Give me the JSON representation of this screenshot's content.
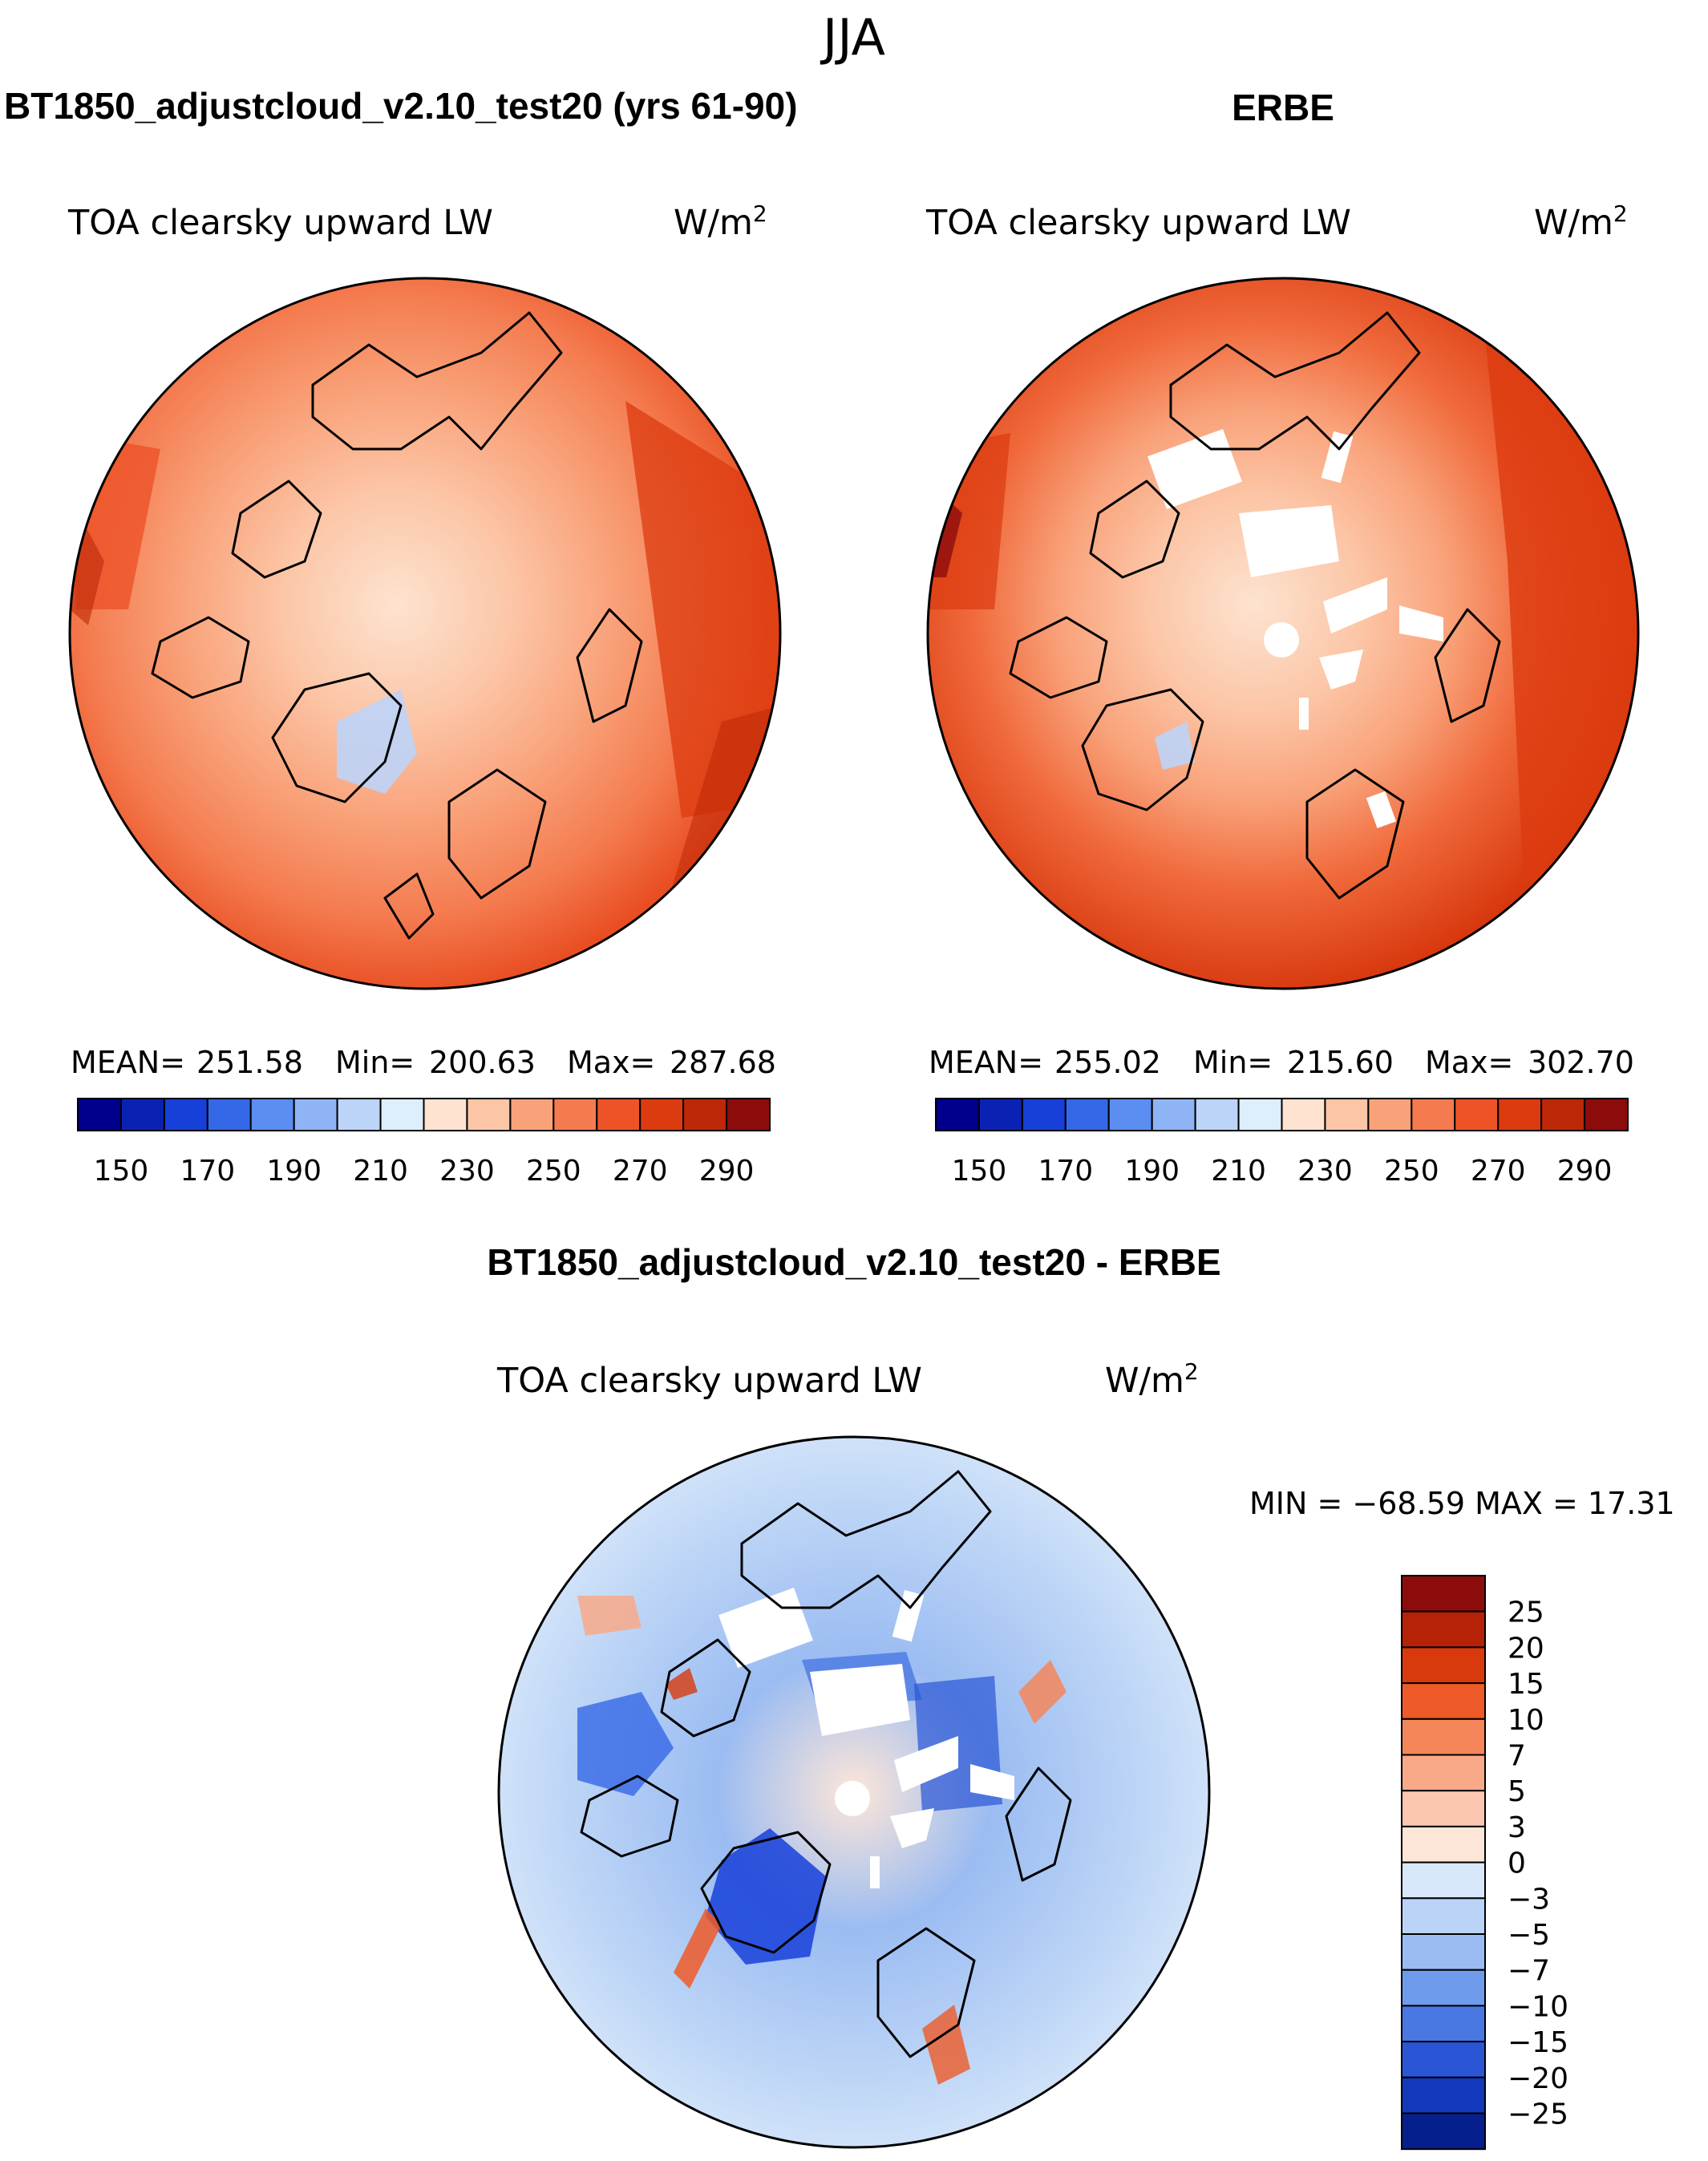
{
  "figure_title": "JJA",
  "chart_data": [
    {
      "type": "heatmap",
      "projection": "north-polar-stereographic",
      "title": "BT1850_adjustcloud_v2.10_test20 (yrs 61-90)",
      "variable": "TOA clearsky upward LW",
      "units": "W/m",
      "units_exp": "2",
      "stats": [
        {
          "label": "MEAN=",
          "value": "251.58"
        },
        {
          "label": "Min=",
          "value": "200.63"
        },
        {
          "label": "Max=",
          "value": "287.68"
        }
      ],
      "levels": [
        150,
        160,
        170,
        180,
        190,
        200,
        210,
        220,
        230,
        240,
        250,
        260,
        270,
        280,
        290
      ],
      "tick_labels": [
        "150",
        "170",
        "190",
        "210",
        "230",
        "250",
        "270",
        "290"
      ],
      "colors": [
        "#00008c",
        "#0a22b4",
        "#1740d8",
        "#3468e6",
        "#5c8df0",
        "#8fb4f5",
        "#bcd4f8",
        "#ddeefc",
        "#fde3d0",
        "#fcc5a6",
        "#f9a27a",
        "#f47b4f",
        "#ee5328",
        "#dc3b0f",
        "#bd2808",
        "#8c0c0c"
      ]
    },
    {
      "type": "heatmap",
      "projection": "north-polar-stereographic",
      "title": "ERBE",
      "variable": "TOA clearsky upward LW",
      "units": "W/m",
      "units_exp": "2",
      "stats": [
        {
          "label": "MEAN=",
          "value": "255.02"
        },
        {
          "label": "Min=",
          "value": "215.60"
        },
        {
          "label": "Max=",
          "value": "302.70"
        }
      ],
      "levels": [
        150,
        160,
        170,
        180,
        190,
        200,
        210,
        220,
        230,
        240,
        250,
        260,
        270,
        280,
        290
      ],
      "tick_labels": [
        "150",
        "170",
        "190",
        "210",
        "230",
        "250",
        "270",
        "290"
      ],
      "colors": [
        "#00008c",
        "#0a22b4",
        "#1740d8",
        "#3468e6",
        "#5c8df0",
        "#8fb4f5",
        "#bcd4f8",
        "#ddeefc",
        "#fde3d0",
        "#fcc5a6",
        "#f9a27a",
        "#f47b4f",
        "#ee5328",
        "#dc3b0f",
        "#bd2808",
        "#8c0c0c"
      ]
    },
    {
      "type": "heatmap",
      "projection": "north-polar-stereographic",
      "title": "BT1850_adjustcloud_v2.10_test20 - ERBE",
      "variable": "TOA clearsky upward LW",
      "units": "W/m",
      "units_exp": "2",
      "min_max_label": "MIN = −68.59 MAX =  17.31",
      "levels": [
        25,
        20,
        15,
        10,
        7,
        5,
        3,
        0,
        -3,
        -5,
        -7,
        -10,
        -15,
        -20,
        -25
      ],
      "tick_labels": [
        "25",
        "20",
        "15",
        "10",
        "7",
        "5",
        "3",
        "0",
        "−3",
        "−5",
        "−7",
        "−10",
        "−15",
        "−20",
        "−25"
      ],
      "colors": [
        "#8c0c0c",
        "#b52208",
        "#d83a0c",
        "#ee5a28",
        "#f4865a",
        "#f8a988",
        "#fcc7b0",
        "#fde6d8",
        "#d8e8fa",
        "#bad3f6",
        "#9bbcf2",
        "#6f9bec",
        "#4a78e2",
        "#2a56d6",
        "#1438bc",
        "#05208c"
      ]
    }
  ]
}
